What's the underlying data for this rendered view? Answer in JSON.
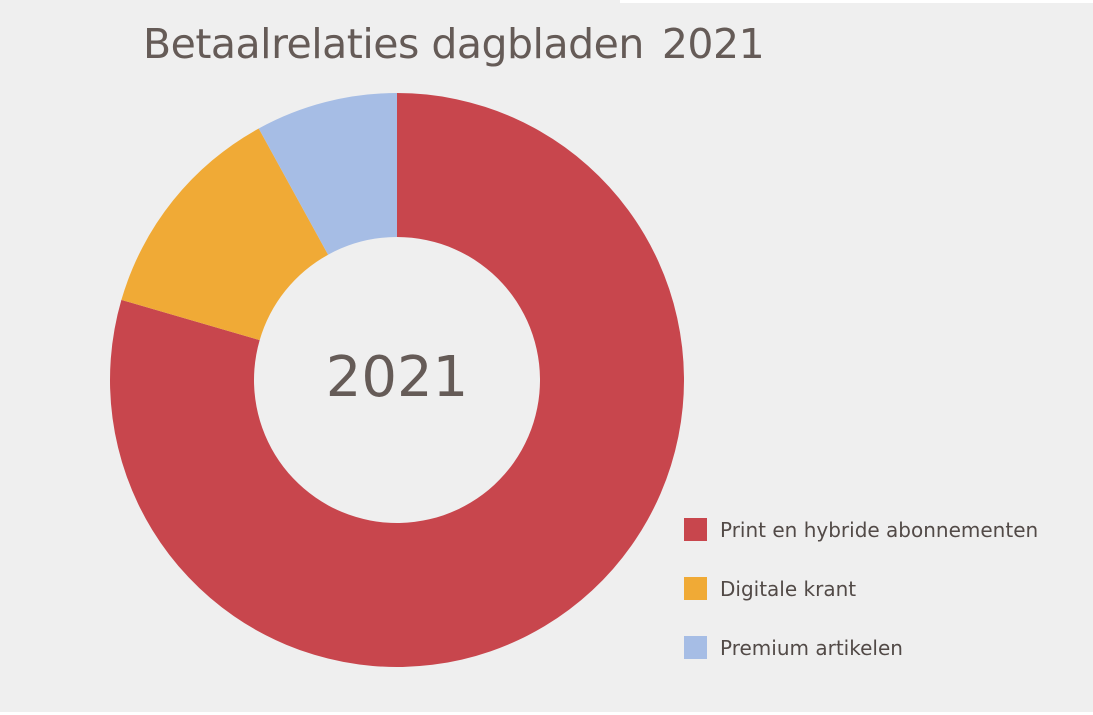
{
  "chart_data": {
    "type": "pie",
    "variant": "donut",
    "title": "Betaalrelaties dagbladen",
    "title_year": "2021",
    "center_label": "2021",
    "categories": [
      "Print en hybride abonnementen",
      "Digitale krant",
      "Premium artikelen"
    ],
    "values": [
      79.5,
      12.5,
      8.0
    ],
    "unit": "%",
    "colors": [
      "#c8464d",
      "#f0aa36",
      "#a6bde5"
    ],
    "start_angle_deg": 0,
    "direction": "clockwise",
    "legend_position": "bottom-right"
  }
}
